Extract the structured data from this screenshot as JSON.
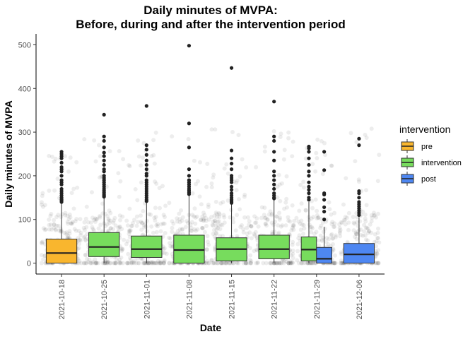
{
  "chart_data": {
    "type": "boxplot",
    "title_line1": "Daily minutes of MVPA:",
    "title_line2": "Before, during and after the intervention period",
    "xlabel": "Date",
    "ylabel": "Daily minutes of MVPA",
    "ylim": [
      -25,
      525
    ],
    "yticks": [
      0,
      100,
      200,
      300,
      400,
      500
    ],
    "ytick_labels": [
      "0",
      "100",
      "200",
      "300",
      "400",
      "500"
    ],
    "categories": [
      "2021-10-18",
      "2021-10-25",
      "2021-11-01",
      "2021-11-08",
      "2021-11-15",
      "2021-11-22",
      "2021-11-29",
      "2021-12-06"
    ],
    "legend": {
      "title": "intervention",
      "entries": [
        {
          "label": "pre",
          "color": "#F9B62E"
        },
        {
          "label": "intervention",
          "color": "#77DC5D"
        },
        {
          "label": "post",
          "color": "#4E87F2"
        }
      ]
    },
    "grid": false,
    "boxes": [
      {
        "category": "2021-10-18",
        "group": "pre",
        "q1": 0,
        "median": 23,
        "q3": 55,
        "whisker_low": 0,
        "whisker_high": 138,
        "outliers": [
          140,
          143,
          146,
          150,
          155,
          160,
          165,
          170,
          180,
          185,
          190,
          200,
          210,
          215,
          220,
          230,
          240,
          245,
          250,
          255
        ]
      },
      {
        "category": "2021-10-25",
        "group": "intervention",
        "q1": 15,
        "median": 37,
        "q3": 70,
        "whisker_low": 0,
        "whisker_high": 150,
        "outliers": [
          152,
          155,
          158,
          162,
          166,
          170,
          175,
          180,
          185,
          190,
          195,
          200,
          210,
          215,
          225,
          235,
          245,
          253,
          265,
          280,
          290,
          340
        ]
      },
      {
        "category": "2021-11-01",
        "group": "intervention",
        "q1": 13,
        "median": 32,
        "q3": 62,
        "whisker_low": 0,
        "whisker_high": 140,
        "outliers": [
          142,
          145,
          150,
          155,
          160,
          165,
          170,
          175,
          180,
          185,
          190,
          200,
          205,
          215,
          225,
          235,
          248,
          260,
          270,
          360
        ]
      },
      {
        "category": "2021-11-08",
        "group": "intervention",
        "q1": 0,
        "median": 30,
        "q3": 64,
        "whisker_low": 0,
        "whisker_high": 155,
        "outliers": [
          158,
          162,
          166,
          170,
          175,
          180,
          185,
          190,
          200,
          215,
          265,
          320,
          498
        ]
      },
      {
        "category": "2021-11-15",
        "group": "intervention",
        "q1": 5,
        "median": 32,
        "q3": 58,
        "whisker_low": 0,
        "whisker_high": 135,
        "outliers": [
          138,
          140,
          143,
          146,
          150,
          155,
          160,
          168,
          175,
          185,
          190,
          195,
          200,
          215,
          228,
          240,
          258,
          447
        ]
      },
      {
        "category": "2021-11-22",
        "group": "intervention",
        "q1": 10,
        "median": 32,
        "q3": 64,
        "whisker_low": 0,
        "whisker_high": 145,
        "outliers": [
          148,
          150,
          155,
          160,
          170,
          180,
          190,
          200,
          210,
          235,
          255,
          280,
          290,
          370
        ]
      },
      {
        "category": "2021-11-29",
        "group": "intervention",
        "q1": 5,
        "median": 31,
        "q3": 60,
        "whisker_low": 0,
        "whisker_high": 140,
        "outliers": [
          145,
          150,
          160,
          168,
          175,
          185,
          200,
          210,
          225,
          240,
          255,
          263,
          267
        ]
      },
      {
        "category": "2021-11-29",
        "group": "post",
        "q1": 0,
        "median": 10,
        "q3": 36,
        "whisker_low": 0,
        "whisker_high": 83,
        "outliers": [
          100,
          118,
          128,
          145,
          157,
          160,
          213,
          255
        ]
      },
      {
        "category": "2021-12-06",
        "group": "post",
        "q1": 0,
        "median": 20,
        "q3": 45,
        "whisker_low": 0,
        "whisker_high": 105,
        "outliers": [
          110,
          115,
          120,
          125,
          130,
          135,
          140,
          150,
          160,
          165,
          270,
          285
        ]
      }
    ]
  }
}
